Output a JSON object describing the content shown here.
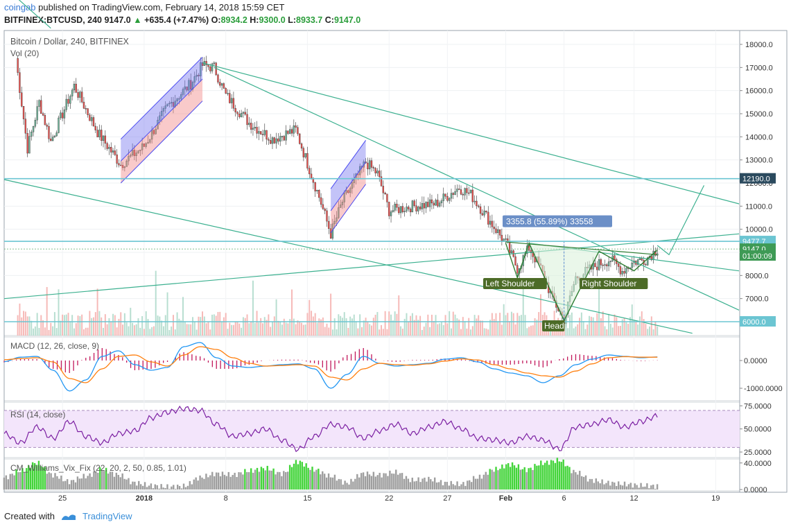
{
  "header": {
    "user": "coingab",
    "published_text": "published on TradingView.com, February 14, 2018 15:59 CET",
    "symbol": "BITFINEX:BTCUSD, 240",
    "last": "9147.0",
    "change": "+635.4 (+7.47%)",
    "o_label": "O:",
    "o": "8934.2",
    "h_label": "H:",
    "h": "9300.0",
    "l_label": "L:",
    "l": "8933.7",
    "c_label": "C:",
    "c": "9147.0"
  },
  "footer": {
    "created_with": "Created with",
    "brand": "TradingView"
  },
  "colors": {
    "up": "#6fb59a",
    "down": "#ef5350",
    "channel_line": "#3bb08f",
    "hline": "#6bc5d2",
    "macd": "#2196f3",
    "signal": "#ff7f0e",
    "hist": "#c2185b",
    "rsi": "#7b1fa2",
    "rsi_bg": "#f3e5fb",
    "vix_gray": "#9e9e9e",
    "vix_green": "#43d43a",
    "label_bg": "#4c6b27"
  },
  "chart_data": [
    {
      "type": "candlestick",
      "title": "Bitcoin / Dollar, 240, BITFINEX",
      "subtitle": "Vol (20)",
      "x_ticks": [
        "25",
        "2018",
        "8",
        "15",
        "22",
        "27",
        "Feb",
        "6",
        "12",
        "19"
      ],
      "y_ticks": [
        6000,
        7000,
        8000,
        9000,
        10000,
        11000,
        12000,
        13000,
        14000,
        15000,
        16000,
        17000,
        18000
      ],
      "y_tick_labels": [
        "6000.0",
        "7000.0",
        "8000.0",
        "9000.0",
        "10000.0",
        "11000.0",
        "12000.0",
        "13000.0",
        "14000.0",
        "15000.0",
        "16000.0",
        "17000.0",
        "18000.0"
      ],
      "ylim": [
        5400,
        18600
      ],
      "price_path": [
        [
          "Dec 21",
          17400
        ],
        [
          "Dec 22",
          13500
        ],
        [
          "Dec 23",
          15500
        ],
        [
          "Dec 24",
          13800
        ],
        [
          "Dec 26",
          16200
        ],
        [
          "Dec 28",
          14200
        ],
        [
          "Dec 30",
          12800
        ],
        [
          "Jan 1",
          13600
        ],
        [
          "Jan 3",
          15300
        ],
        [
          "Jan 5",
          16300
        ],
        [
          "Jan 6",
          17100
        ],
        [
          "Jan 7",
          17000
        ],
        [
          "Jan 8",
          15800
        ],
        [
          "Jan 10",
          14600
        ],
        [
          "Jan 12",
          13900
        ],
        [
          "Jan 14",
          14300
        ],
        [
          "Jan 16",
          11400
        ],
        [
          "Jan 17",
          9800
        ],
        [
          "Jan 18",
          11200
        ],
        [
          "Jan 20",
          12900
        ],
        [
          "Jan 21",
          12400
        ],
        [
          "Jan 22",
          10800
        ],
        [
          "Jan 24",
          11000
        ],
        [
          "Jan 26",
          11100
        ],
        [
          "Jan 28",
          11800
        ],
        [
          "Jan 29",
          11500
        ],
        [
          "Jan 31",
          10100
        ],
        [
          "Feb 1",
          9400
        ],
        [
          "Feb 2",
          8300
        ],
        [
          "Feb 3",
          9200
        ],
        [
          "Feb 4",
          8300
        ],
        [
          "Feb 5",
          7000
        ],
        [
          "Feb 6",
          6100
        ],
        [
          "Feb 7",
          7900
        ],
        [
          "Feb 8",
          8200
        ],
        [
          "Feb 9",
          8500
        ],
        [
          "Feb 10",
          8700
        ],
        [
          "Feb 11",
          8200
        ],
        [
          "Feb 12",
          8600
        ],
        [
          "Feb 13",
          8700
        ],
        [
          "Feb 14",
          9147
        ]
      ],
      "price_labels": [
        {
          "value": 12190.0,
          "text": "12190.0",
          "style": "dark"
        },
        {
          "value": 9477.7,
          "text": "9477.7",
          "style": "teal"
        },
        {
          "value": 9147.0,
          "text": "9147.0",
          "style": "green"
        },
        {
          "value": 8850,
          "text": "01:00:09",
          "style": "green"
        },
        {
          "value": 6000.0,
          "text": "6000.0",
          "style": "teal"
        }
      ],
      "annotations": {
        "measure": "3355.8 (55.89%) 33558",
        "left_shoulder": "Left Shoulder",
        "head": "Head",
        "right_shoulder": "Right Shoulder"
      }
    },
    {
      "type": "line",
      "title": "MACD (12, 26, close, 9)",
      "y_tick_labels": [
        "0.0000",
        "-1000.0000"
      ],
      "y_ticks": [
        0,
        -1000
      ],
      "ylim": [
        -1450,
        850
      ],
      "series": [
        {
          "values": [
            -40,
            120,
            150,
            -350,
            -1100,
            -700,
            150,
            350,
            -150,
            -350,
            -250,
            500,
            650,
            100,
            -200,
            -250,
            -200,
            -150,
            -120,
            -300,
            -1000,
            -500,
            150,
            -100,
            -200,
            -150,
            -100,
            50,
            100,
            -50,
            -300,
            -450,
            -550,
            -800,
            -550,
            -150,
            50,
            200,
            150,
            100,
            130
          ]
        },
        {
          "values": [
            30,
            70,
            100,
            -50,
            -650,
            -800,
            -300,
            150,
            200,
            -50,
            -200,
            200,
            500,
            400,
            100,
            -100,
            -200,
            -180,
            -150,
            -200,
            -600,
            -700,
            -300,
            -100,
            -150,
            -170,
            -120,
            -20,
            60,
            20,
            -150,
            -300,
            -450,
            -550,
            -600,
            -380,
            -120,
            100,
            140,
            120,
            120
          ]
        }
      ]
    },
    {
      "type": "line",
      "title": "RSI (14, close)",
      "y_ticks": [
        75,
        50,
        25
      ],
      "y_tick_labels": [
        "75.0000",
        "50.0000",
        "25.0000"
      ],
      "ylim": [
        19,
        79
      ],
      "bands": [
        30,
        70
      ],
      "series": [
        {
          "values": [
            45,
            35,
            52,
            40,
            58,
            42,
            35,
            45,
            48,
            62,
            68,
            72,
            70,
            55,
            42,
            45,
            50,
            38,
            28,
            42,
            55,
            52,
            40,
            48,
            55,
            45,
            52,
            58,
            50,
            40,
            38,
            35,
            42,
            38,
            28,
            52,
            55,
            60,
            52,
            58,
            64
          ]
        }
      ]
    },
    {
      "type": "bar",
      "title": "CM_Williams_Vix_Fix (22, 20, 2, 50, 0.85, 1.01)",
      "y_ticks": [
        40,
        0
      ],
      "y_tick_labels": [
        "40.0000",
        "0.0000"
      ],
      "ylim": [
        -2,
        46
      ],
      "values": [
        18,
        28,
        40,
        22,
        12,
        20,
        30,
        22,
        10,
        6,
        4,
        5,
        18,
        24,
        22,
        28,
        32,
        24,
        42,
        30,
        20,
        10,
        24,
        22,
        26,
        14,
        16,
        10,
        8,
        18,
        30,
        38,
        30,
        40,
        44,
        26,
        14,
        10,
        8,
        6,
        5
      ],
      "highlight_threshold": 30
    }
  ]
}
